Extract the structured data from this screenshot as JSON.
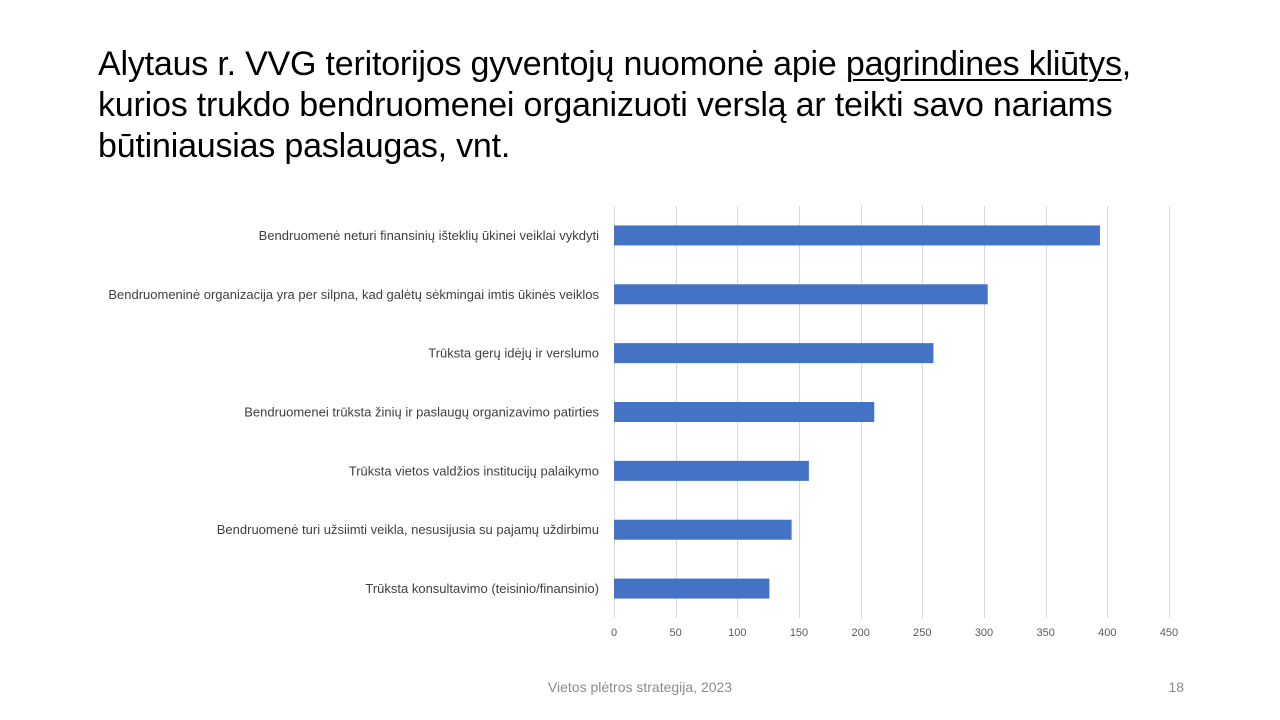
{
  "title": {
    "part1": "Alytaus r. VVG teritorijos gyventojų nuomonė apie ",
    "underlined": "pagrindines kliūtys",
    "part2": ", kurios trukdo bendruomenei organizuoti verslą ar teikti savo nariams būtiniausias paslaugas, vnt."
  },
  "chart_data": {
    "type": "bar",
    "orientation": "horizontal",
    "categories": [
      "Bendruomenė neturi finansinių išteklių ūkinei veiklai vykdyti",
      "Bendruomeninė organizacija yra per silpna, kad galėtų sėkmingai imtis ūkinės veiklos",
      "Trūksta gerų idėjų ir verslumo",
      "Bendruomenei trūksta žinių ir paslaugų organizavimo patirties",
      "Trūksta vietos valdžios institucijų palaikymo",
      "Bendruomenė turi užsiimti veikla, nesusijusia su pajamų uždirbimu",
      "Trūksta konsultavimo (teisinio/finansinio)"
    ],
    "values": [
      394,
      303,
      259,
      211,
      158,
      144,
      126
    ],
    "xlim": [
      0,
      450
    ],
    "xticks": [
      "0",
      "50",
      "100",
      "150",
      "200",
      "250",
      "300",
      "350",
      "400",
      "450"
    ],
    "bar_color": "#4472C4",
    "grid": true,
    "legend": "none"
  },
  "footer": {
    "text": "Vietos plėtros strategija, 2023",
    "page": "18"
  }
}
